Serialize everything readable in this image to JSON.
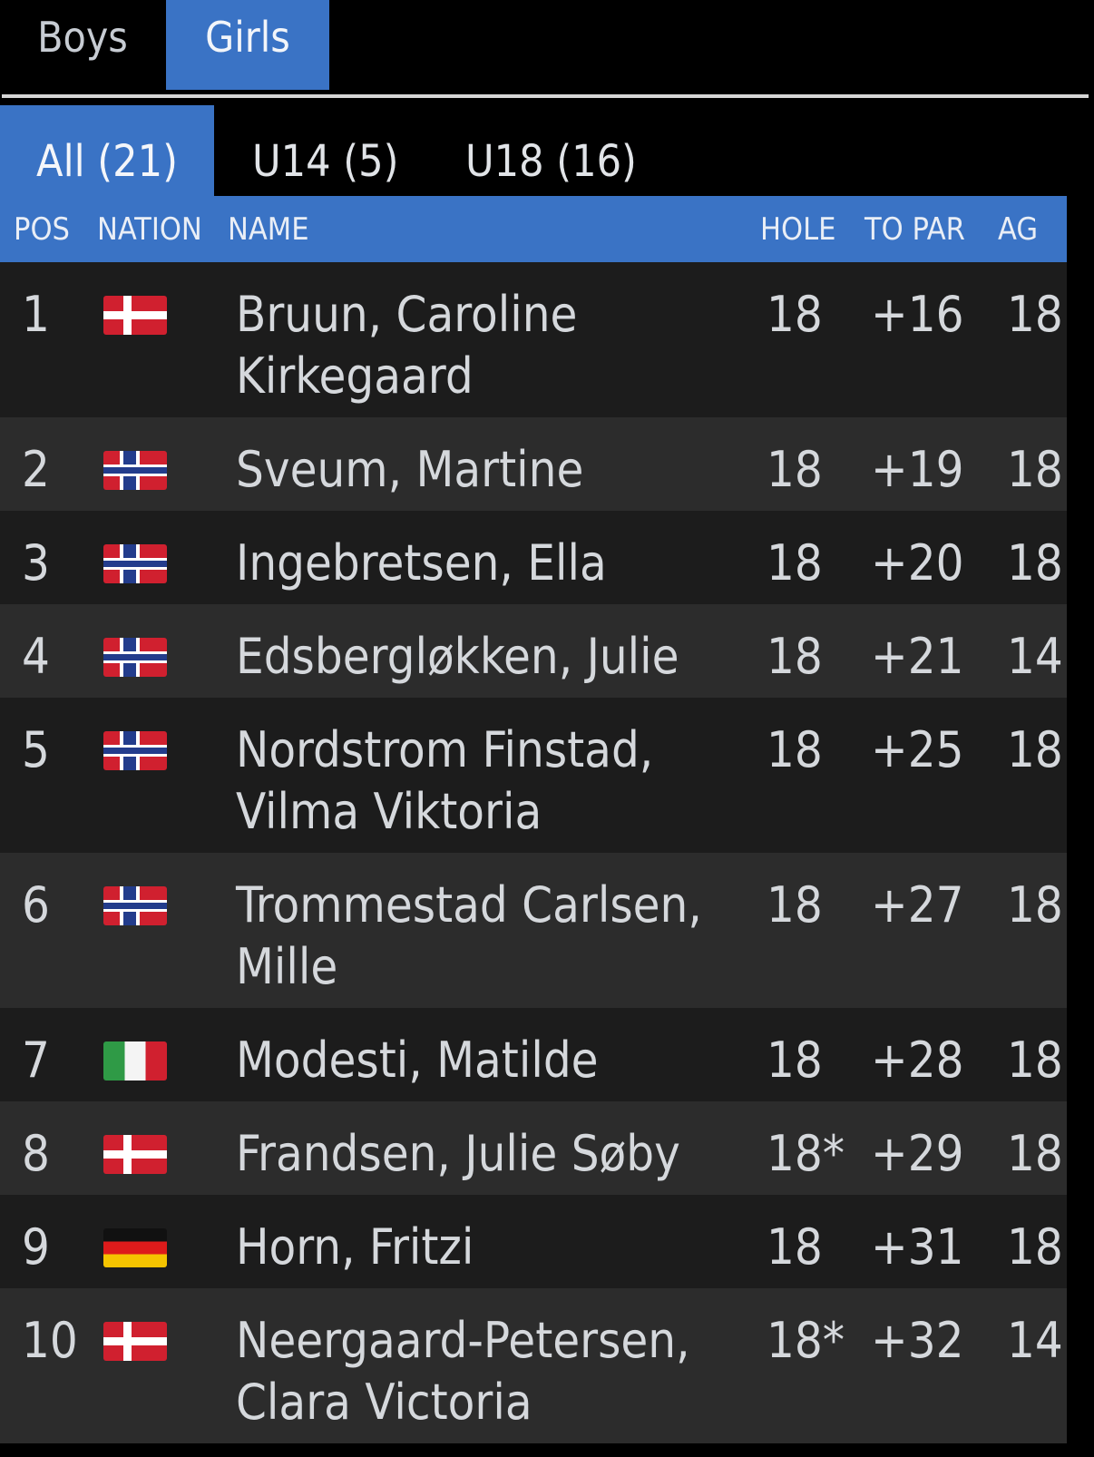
{
  "gender_tabs": {
    "boys": "Boys",
    "girls": "Girls",
    "active": "Girls"
  },
  "age_tabs": {
    "all": "All (21)",
    "u14": "U14 (5)",
    "u18": "U18 (16)",
    "active": "All (21)"
  },
  "header": {
    "pos": "POS",
    "nation": "NATION",
    "name": "NAME",
    "hole": "HOLE",
    "to_par": "TO PAR",
    "ag": "AG"
  },
  "rows": [
    {
      "pos": "1",
      "nation": "Denmark",
      "flag_icon": "denmark-flag-icon",
      "name": "Bruun, Caroline Kirkegaard",
      "hole": "18",
      "to_par": "+16",
      "ag": "18"
    },
    {
      "pos": "2",
      "nation": "Norway",
      "flag_icon": "norway-flag-icon",
      "name": "Sveum, Martine",
      "hole": "18",
      "to_par": "+19",
      "ag": "18"
    },
    {
      "pos": "3",
      "nation": "Norway",
      "flag_icon": "norway-flag-icon",
      "name": "Ingebretsen, Ella",
      "hole": "18",
      "to_par": "+20",
      "ag": "18"
    },
    {
      "pos": "4",
      "nation": "Norway",
      "flag_icon": "norway-flag-icon",
      "name": "Edsbergløkken, Julie",
      "hole": "18",
      "to_par": "+21",
      "ag": "14"
    },
    {
      "pos": "5",
      "nation": "Norway",
      "flag_icon": "norway-flag-icon",
      "name": "Nordstrom Finstad, Vilma Viktoria",
      "hole": "18",
      "to_par": "+25",
      "ag": "18"
    },
    {
      "pos": "6",
      "nation": "Norway",
      "flag_icon": "norway-flag-icon",
      "name": "Trommestad Carlsen, Mille",
      "hole": "18",
      "to_par": "+27",
      "ag": "18"
    },
    {
      "pos": "7",
      "nation": "Italy",
      "flag_icon": "italy-flag-icon",
      "name": "Modesti, Matilde",
      "hole": "18",
      "to_par": "+28",
      "ag": "18"
    },
    {
      "pos": "8",
      "nation": "Denmark",
      "flag_icon": "denmark-flag-icon",
      "name": "Frandsen, Julie Søby",
      "hole": "18*",
      "to_par": "+29",
      "ag": "18"
    },
    {
      "pos": "9",
      "nation": "Germany",
      "flag_icon": "germany-flag-icon",
      "name": "Horn, Fritzi",
      "hole": "18",
      "to_par": "+31",
      "ag": "18"
    },
    {
      "pos": "10",
      "nation": "Denmark",
      "flag_icon": "denmark-flag-icon",
      "name": "Neergaard-Petersen, Clara Victoria",
      "hole": "18*",
      "to_par": "+32",
      "ag": "14"
    }
  ],
  "colors": {
    "accent": "#3a73c5",
    "row_dark": "#1c1c1c",
    "row_light": "#2c2c2c",
    "background": "#000000"
  }
}
